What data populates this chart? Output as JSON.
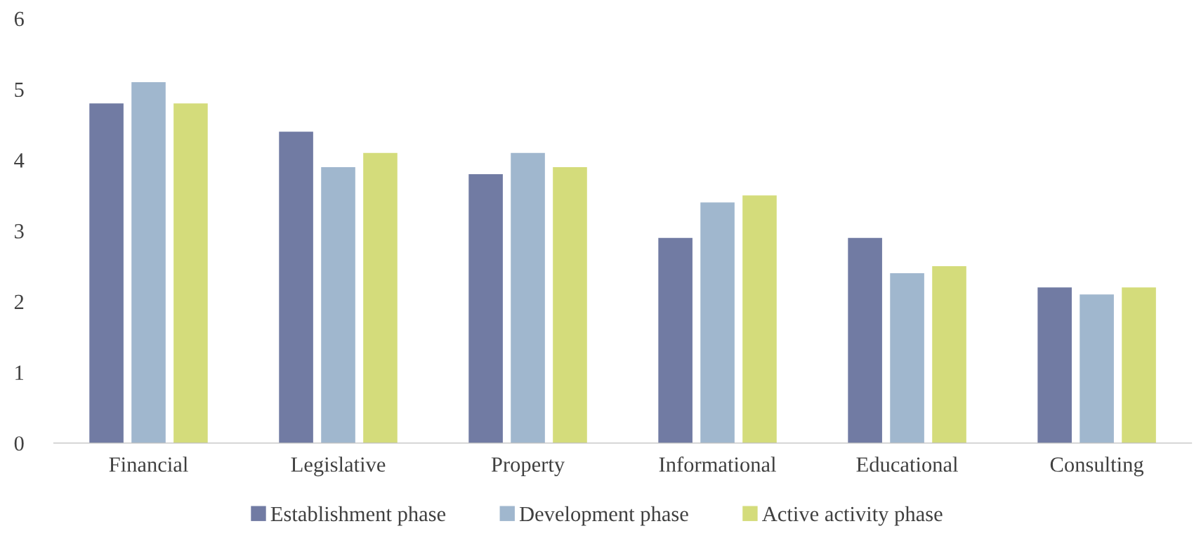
{
  "chart_data": {
    "type": "bar",
    "categories": [
      "Financial",
      "Legislative",
      "Property",
      "Informational",
      "Educational",
      "Consulting"
    ],
    "series": [
      {
        "name": "Establishment phase",
        "color": "#717ba3",
        "values": [
          4.8,
          4.4,
          3.8,
          2.9,
          2.9,
          2.2
        ]
      },
      {
        "name": "Development phase",
        "color": "#a0b7ce",
        "values": [
          5.1,
          3.9,
          4.1,
          3.4,
          2.4,
          2.1
        ]
      },
      {
        "name": "Active activity phase",
        "color": "#d4dc7b",
        "values": [
          4.8,
          4.1,
          3.9,
          3.5,
          2.5,
          2.2
        ]
      }
    ],
    "ylim": [
      0,
      6
    ],
    "yticks": [
      0,
      1,
      2,
      3,
      4,
      5,
      6
    ],
    "grid": false,
    "legend": "bottom"
  }
}
